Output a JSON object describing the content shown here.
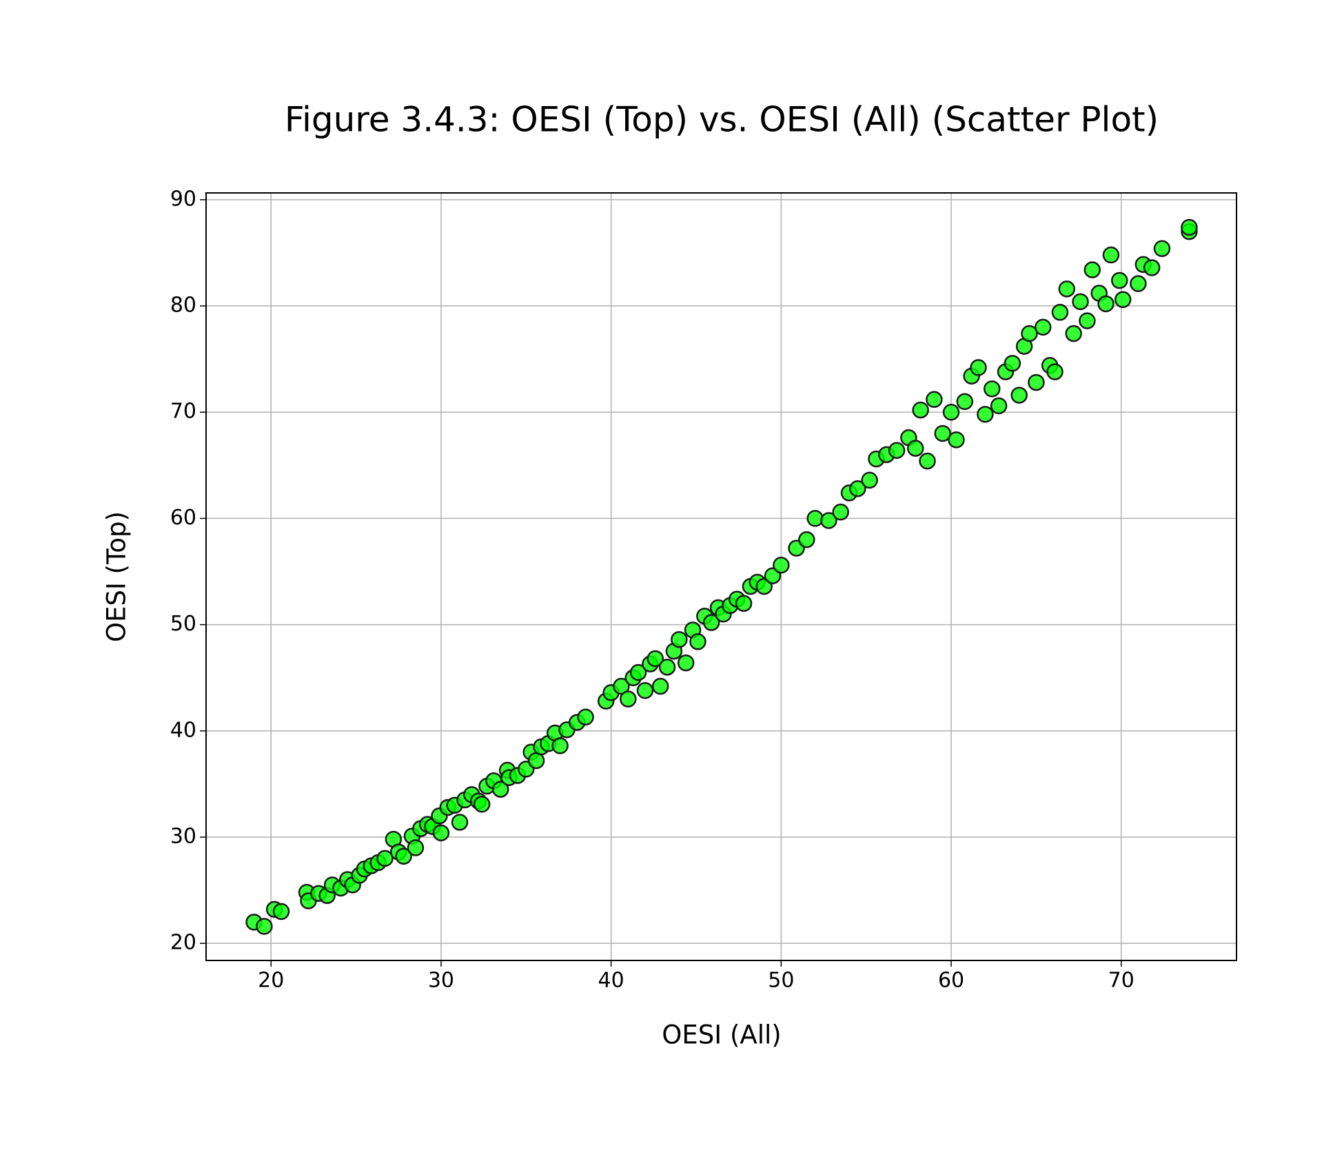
{
  "chart_data": {
    "type": "scatter",
    "title": "Figure 3.4.3: OESI (Top) vs. OESI (All) (Scatter Plot)",
    "x_label": "OESI (All)",
    "y_label": "OESI (Top)",
    "color": "#00ff00",
    "edgecolor": "#1a1a1a",
    "grid": true,
    "xlim": [
      16.18,
      76.78
    ],
    "ylim": [
      18.39,
      90.64
    ],
    "xticks": [
      20,
      30,
      40,
      50,
      60,
      70
    ],
    "yticks": [
      20,
      30,
      40,
      50,
      60,
      70,
      80,
      90
    ],
    "x": [
      19.0,
      19.6,
      20.2,
      20.6,
      22.1,
      22.2,
      22.8,
      23.3,
      23.6,
      24.1,
      24.5,
      24.8,
      25.2,
      25.5,
      25.9,
      26.3,
      26.7,
      27.2,
      27.5,
      27.8,
      28.3,
      28.5,
      28.8,
      29.2,
      29.5,
      29.9,
      30.0,
      30.4,
      30.8,
      31.1,
      31.4,
      31.8,
      32.2,
      32.4,
      32.7,
      33.1,
      33.5,
      33.9,
      34.0,
      34.5,
      35.0,
      35.3,
      35.6,
      35.9,
      36.3,
      36.7,
      37.0,
      37.4,
      38.0,
      38.5,
      39.7,
      40.0,
      40.6,
      41.0,
      41.3,
      41.6,
      42.0,
      42.3,
      42.6,
      42.9,
      43.3,
      43.7,
      44.0,
      44.4,
      44.8,
      45.1,
      45.5,
      45.9,
      46.3,
      46.6,
      47.0,
      47.4,
      47.8,
      48.2,
      48.6,
      49.0,
      49.5,
      50.0,
      50.9,
      51.5,
      52.0,
      52.8,
      53.5,
      54.0,
      54.5,
      55.2,
      55.6,
      56.2,
      56.8,
      57.5,
      57.9,
      58.2,
      58.6,
      59.0,
      59.5,
      60.0,
      60.3,
      60.8,
      61.2,
      61.6,
      62.0,
      62.4,
      62.8,
      63.2,
      63.6,
      64.0,
      64.3,
      64.6,
      65.0,
      65.4,
      65.8,
      66.1,
      66.4,
      66.8,
      67.2,
      67.6,
      68.0,
      68.3,
      68.7,
      69.1,
      69.4,
      69.9,
      70.1,
      71.0,
      71.3,
      71.8,
      72.4,
      74.0,
      74.0
    ],
    "values": [
      22.0,
      21.6,
      23.2,
      23.0,
      24.8,
      24.0,
      24.7,
      24.5,
      25.5,
      25.2,
      26.0,
      25.5,
      26.4,
      27.0,
      27.3,
      27.6,
      28.0,
      29.8,
      28.6,
      28.2,
      30.1,
      29.0,
      30.8,
      31.2,
      31.0,
      32.0,
      30.4,
      32.8,
      33.0,
      31.4,
      33.5,
      34.0,
      33.4,
      33.1,
      34.8,
      35.3,
      34.5,
      36.3,
      35.6,
      35.8,
      36.4,
      38.0,
      37.2,
      38.5,
      38.8,
      39.8,
      38.6,
      40.1,
      40.8,
      41.3,
      42.8,
      43.6,
      44.2,
      43.0,
      45.0,
      45.5,
      43.8,
      46.3,
      46.8,
      44.2,
      46.0,
      47.5,
      48.6,
      46.4,
      49.5,
      48.4,
      50.8,
      50.2,
      51.6,
      51.0,
      51.8,
      52.4,
      52.0,
      53.6,
      54.0,
      53.6,
      54.6,
      55.6,
      57.2,
      58.0,
      60.0,
      59.8,
      60.6,
      62.4,
      62.8,
      63.6,
      65.6,
      66.0,
      66.4,
      67.6,
      66.6,
      70.2,
      65.4,
      71.2,
      68.0,
      70.0,
      67.4,
      71.0,
      73.4,
      74.2,
      69.8,
      72.2,
      70.6,
      73.8,
      74.6,
      71.6,
      76.2,
      77.4,
      72.8,
      78.0,
      74.4,
      73.8,
      79.4,
      81.6,
      77.4,
      80.4,
      78.6,
      83.4,
      81.2,
      80.2,
      84.8,
      82.4,
      80.6,
      82.1,
      83.9,
      83.6,
      85.4,
      87.0,
      87.4
    ]
  }
}
